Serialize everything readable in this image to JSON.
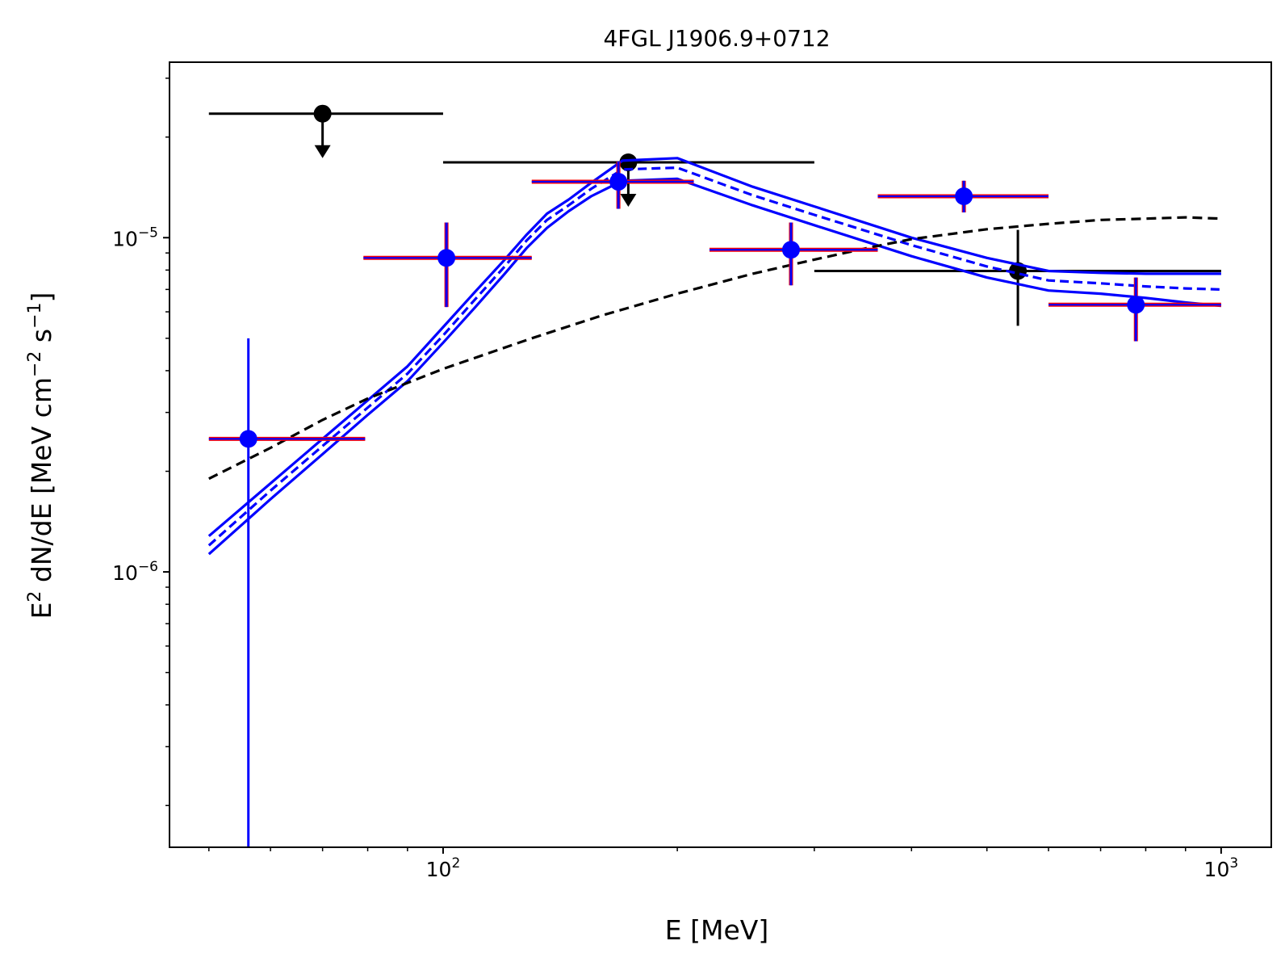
{
  "chart_data": {
    "type": "scatter",
    "title": "4FGL J1906.9+0712",
    "xlabel": "E [MeV]",
    "ylabel_parts": {
      "base": "E",
      "sup1": "2",
      "mid": " dN/dE [MeV cm",
      "sup2": "−2",
      "mid2": " s",
      "sup3": "−1",
      "end": "]"
    },
    "x_scale": "log",
    "y_scale": "log",
    "xlim": [
      44.5,
      1160
    ],
    "ylim": [
      1.5e-07,
      3.35e-05
    ],
    "x_ticks": [
      {
        "value": 100,
        "base": "10",
        "exp": "2"
      },
      {
        "value": 1000,
        "base": "10",
        "exp": "3"
      }
    ],
    "y_ticks": [
      {
        "value": 1e-06,
        "base": "10",
        "exp": "−6"
      },
      {
        "value": 1e-05,
        "base": "10",
        "exp": "−5"
      }
    ],
    "grid": false,
    "legend": "none",
    "colors": {
      "model": "#0000ff",
      "catalog": "#000000",
      "flux_point": "#0000ff",
      "error_bar": "#ff0000"
    },
    "series": [
      {
        "kind": "model_band_upper",
        "style": "solid",
        "x": [
          50,
          60,
          70,
          80,
          90,
          100,
          110,
          120,
          128,
          136,
          145,
          155,
          170,
          200,
          250,
          300,
          400,
          500,
          600,
          700,
          800,
          900,
          1000
        ],
        "y": [
          1.28e-06,
          1.84e-06,
          2.5e-06,
          3.26e-06,
          4.12e-06,
          5.4e-06,
          6.9e-06,
          8.6e-06,
          1.02e-05,
          1.18e-05,
          1.3e-05,
          1.46e-05,
          1.7e-05,
          1.73e-05,
          1.42e-05,
          1.24e-05,
          1e-05,
          8.7e-06,
          7.95e-06,
          7.85e-06,
          7.8e-06,
          7.8e-06,
          7.8e-06
        ]
      },
      {
        "kind": "model_best",
        "style": "dashed",
        "x": [
          50,
          60,
          70,
          80,
          90,
          100,
          110,
          120,
          128,
          136,
          145,
          155,
          170,
          200,
          250,
          300,
          400,
          500,
          600,
          700,
          800,
          900,
          1000
        ],
        "y": [
          1.2e-06,
          1.75e-06,
          2.38e-06,
          3.1e-06,
          3.92e-06,
          5.1e-06,
          6.55e-06,
          8.2e-06,
          9.8e-06,
          1.13e-05,
          1.25e-05,
          1.4e-05,
          1.6e-05,
          1.62e-05,
          1.34e-05,
          1.17e-05,
          9.5e-06,
          8.2e-06,
          7.45e-06,
          7.3e-06,
          7.15e-06,
          7.05e-06,
          7e-06
        ]
      },
      {
        "kind": "model_band_lower",
        "style": "solid",
        "x": [
          50,
          60,
          70,
          80,
          90,
          100,
          110,
          120,
          128,
          136,
          145,
          155,
          170,
          200,
          250,
          300,
          400,
          500,
          600,
          700,
          800,
          900,
          1000
        ],
        "y": [
          1.13e-06,
          1.65e-06,
          2.25e-06,
          2.95e-06,
          3.72e-06,
          4.85e-06,
          6.2e-06,
          7.8e-06,
          9.3e-06,
          1.07e-05,
          1.2e-05,
          1.33e-05,
          1.48e-05,
          1.5e-05,
          1.25e-05,
          1.09e-05,
          8.8e-06,
          7.6e-06,
          6.95e-06,
          6.8e-06,
          6.6e-06,
          6.4e-06,
          6.25e-06
        ]
      },
      {
        "kind": "catalog_model",
        "style": "dashed",
        "x": [
          50,
          60,
          70,
          80,
          100,
          130,
          160,
          200,
          250,
          300,
          350,
          400,
          500,
          600,
          700,
          800,
          900,
          1000
        ],
        "y": [
          1.9e-06,
          2.35e-06,
          2.85e-06,
          3.3e-06,
          4.05e-06,
          5e-06,
          5.85e-06,
          6.8e-06,
          7.8e-06,
          8.6e-06,
          9.3e-06,
          9.9e-06,
          1.06e-05,
          1.1e-05,
          1.13e-05,
          1.14e-05,
          1.15e-05,
          1.14e-05
        ]
      }
    ],
    "flux_points": [
      {
        "e": 56.2,
        "e_min": 50.0,
        "e_max": 79.4,
        "flux": 2.5e-06,
        "err_lo": 2.35e-06,
        "err_hi": 2.5e-06
      },
      {
        "e": 101.0,
        "e_min": 79.0,
        "e_max": 130.0,
        "flux": 8.7e-06,
        "err_lo": 2.5e-06,
        "err_hi": 2.4e-06
      },
      {
        "e": 168.0,
        "e_min": 130.0,
        "e_max": 210.0,
        "flux": 1.47e-05,
        "err_lo": 2.5e-06,
        "err_hi": 2.2e-06
      },
      {
        "e": 280.0,
        "e_min": 220.0,
        "e_max": 362.0,
        "flux": 9.2e-06,
        "err_lo": 2e-06,
        "err_hi": 1.9e-06
      },
      {
        "e": 467.0,
        "e_min": 362.0,
        "e_max": 600.0,
        "flux": 1.33e-05,
        "err_lo": 1.4e-06,
        "err_hi": 1.5e-06
      },
      {
        "e": 777.0,
        "e_min": 600.0,
        "e_max": 1000.0,
        "flux": 6.3e-06,
        "err_lo": 1.4e-06,
        "err_hi": 1.3e-06
      }
    ],
    "catalog_points": [
      {
        "e": 70.0,
        "e_min": 50.0,
        "e_max": 100.0,
        "flux": 2.35e-05,
        "upper_limit": true
      },
      {
        "e": 173.0,
        "e_min": 100.0,
        "e_max": 300.0,
        "flux": 1.68e-05,
        "upper_limit": true
      },
      {
        "e": 548.0,
        "e_min": 300.0,
        "e_max": 1000.0,
        "flux": 7.95e-06,
        "upper_limit": false,
        "err_lo": 2.5e-06,
        "err_hi": 2.6e-06
      }
    ]
  }
}
